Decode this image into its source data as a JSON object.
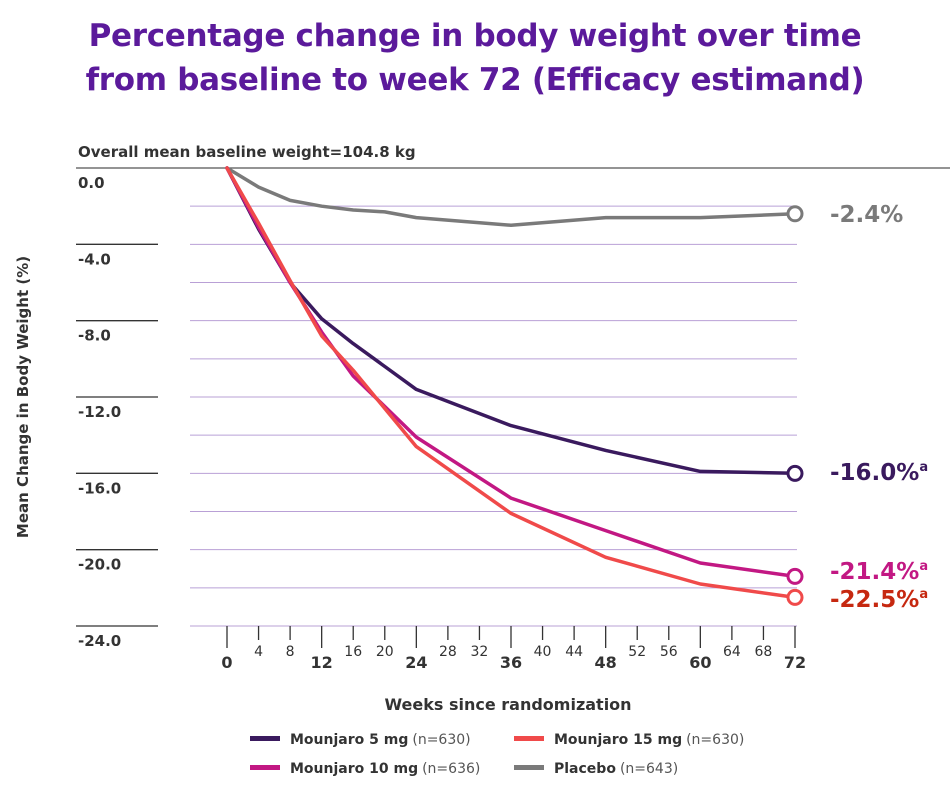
{
  "title_lines": [
    "Percentage change in body weight over time",
    "from baseline to week 72 (Efficacy estimand)"
  ],
  "chart_data": {
    "type": "line",
    "title": "Percentage change in body weight over time from baseline to week 72 (Efficacy estimand)",
    "subtitle": "Overall mean baseline weight=104.8 kg",
    "xlabel": "Weeks since randomization",
    "ylabel": "Mean Change in Body Weight (%)",
    "ylim": [
      -24,
      0
    ],
    "xlim": [
      0,
      72
    ],
    "y_ticks": [
      "0.0",
      "-4.0",
      "-8.0",
      "-12.0",
      "-16.0",
      "-20.0",
      "-24.0"
    ],
    "x_ticks": [
      {
        "v": 0,
        "label": "0",
        "major": true
      },
      {
        "v": 4,
        "label": "4",
        "major": false
      },
      {
        "v": 8,
        "label": "8",
        "major": false
      },
      {
        "v": 12,
        "label": "12",
        "major": true
      },
      {
        "v": 16,
        "label": "16",
        "major": false
      },
      {
        "v": 20,
        "label": "20",
        "major": false
      },
      {
        "v": 24,
        "label": "24",
        "major": true
      },
      {
        "v": 28,
        "label": "28",
        "major": false
      },
      {
        "v": 32,
        "label": "32",
        "major": false
      },
      {
        "v": 36,
        "label": "36",
        "major": true
      },
      {
        "v": 40,
        "label": "40",
        "major": false
      },
      {
        "v": 44,
        "label": "44",
        "major": false
      },
      {
        "v": 48,
        "label": "48",
        "major": true
      },
      {
        "v": 52,
        "label": "52",
        "major": false
      },
      {
        "v": 56,
        "label": "56",
        "major": false
      },
      {
        "v": 60,
        "label": "60",
        "major": true
      },
      {
        "v": 64,
        "label": "64",
        "major": false
      },
      {
        "v": 68,
        "label": "68",
        "major": false
      },
      {
        "v": 72,
        "label": "72",
        "major": true
      }
    ],
    "grid": true,
    "legend_position": "bottom",
    "series": [
      {
        "name": "Placebo",
        "n": "(n=643)",
        "color": "#7a7a7a",
        "x": [
          0,
          4,
          8,
          12,
          16,
          20,
          24,
          36,
          48,
          60,
          72
        ],
        "y": [
          0,
          -1.0,
          -1.7,
          -2.0,
          -2.2,
          -2.3,
          -2.6,
          -3.0,
          -2.6,
          -2.6,
          -2.4
        ],
        "end_label": "-2.4%",
        "sup": "",
        "label_color": "#7a7a7a"
      },
      {
        "name": "Mounjaro 5 mg",
        "n": "(n=630)",
        "color": "#3a1a5e",
        "x": [
          0,
          4,
          8,
          12,
          16,
          20,
          24,
          36,
          48,
          60,
          72
        ],
        "y": [
          0,
          -3.2,
          -6.0,
          -7.9,
          -9.2,
          -10.4,
          -11.6,
          -13.5,
          -14.8,
          -15.9,
          -16.0
        ],
        "end_label": "-16.0%",
        "sup": "a",
        "label_color": "#3a1a5e"
      },
      {
        "name": "Mounjaro 10 mg",
        "n": "(n=636)",
        "color": "#c21883",
        "x": [
          0,
          4,
          8,
          12,
          16,
          20,
          24,
          36,
          48,
          60,
          72
        ],
        "y": [
          0,
          -3.1,
          -6.0,
          -8.6,
          -10.9,
          -12.5,
          -14.1,
          -17.3,
          -19.0,
          -20.7,
          -21.4
        ],
        "end_label": "-21.4%",
        "sup": "a",
        "label_color": "#c21883"
      },
      {
        "name": "Mounjaro 15 mg",
        "n": "(n=630)",
        "color": "#f04a4a",
        "x": [
          0,
          4,
          8,
          12,
          16,
          20,
          24,
          36,
          48,
          60,
          72
        ],
        "y": [
          0,
          -2.9,
          -5.9,
          -8.8,
          -10.6,
          -12.6,
          -14.6,
          -18.1,
          -20.4,
          -21.8,
          -22.5
        ],
        "end_label": "-22.5%",
        "sup": "a",
        "label_color": "#c62810"
      }
    ]
  },
  "legend": [
    {
      "name": "Mounjaro 5 mg",
      "n": "(n=630)",
      "color": "#3a1a5e"
    },
    {
      "name": "Mounjaro 15 mg",
      "n": "(n=630)",
      "color": "#f04a4a"
    },
    {
      "name": "Mounjaro 10 mg",
      "n": "(n=636)",
      "color": "#c21883"
    },
    {
      "name": "Placebo",
      "n": "(n=643)",
      "color": "#7a7a7a"
    }
  ]
}
